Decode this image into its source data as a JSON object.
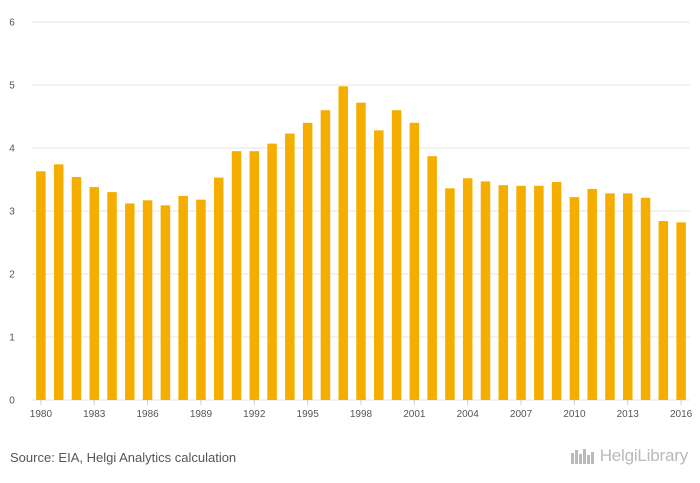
{
  "chart_data": {
    "type": "bar",
    "categories": [
      "1980",
      "1981",
      "1982",
      "1983",
      "1984",
      "1985",
      "1986",
      "1987",
      "1988",
      "1989",
      "1990",
      "1991",
      "1992",
      "1993",
      "1994",
      "1995",
      "1996",
      "1997",
      "1998",
      "1999",
      "2000",
      "2001",
      "2002",
      "2003",
      "2004",
      "2005",
      "2006",
      "2007",
      "2008",
      "2009",
      "2010",
      "2011",
      "2012",
      "2013",
      "2014",
      "2015",
      "2016"
    ],
    "values": [
      3.63,
      3.74,
      3.54,
      3.38,
      3.3,
      3.12,
      3.17,
      3.09,
      3.24,
      3.18,
      3.53,
      3.95,
      3.95,
      4.07,
      4.23,
      4.4,
      4.6,
      4.98,
      4.72,
      4.28,
      4.6,
      4.4,
      3.87,
      3.36,
      3.52,
      3.47,
      3.41,
      3.4,
      3.4,
      3.46,
      3.22,
      3.35,
      3.28,
      3.28,
      3.21,
      2.84,
      2.82
    ],
    "x_tick_labels": [
      "1980",
      "1983",
      "1986",
      "1989",
      "1992",
      "1995",
      "1998",
      "2001",
      "2004",
      "2007",
      "2010",
      "2013",
      "2016"
    ],
    "y_ticks": [
      0,
      1,
      2,
      3,
      4,
      5,
      6
    ],
    "ylim": [
      0,
      6
    ],
    "title": "",
    "xlabel": "",
    "ylabel": "",
    "grid": true,
    "bar_color": "#f5ae00"
  },
  "footer": {
    "source": "Source: EIA, Helgi Analytics calculation"
  },
  "brand": {
    "name": "HelgiLibrary",
    "icon": "helgi-library-logo-icon"
  }
}
